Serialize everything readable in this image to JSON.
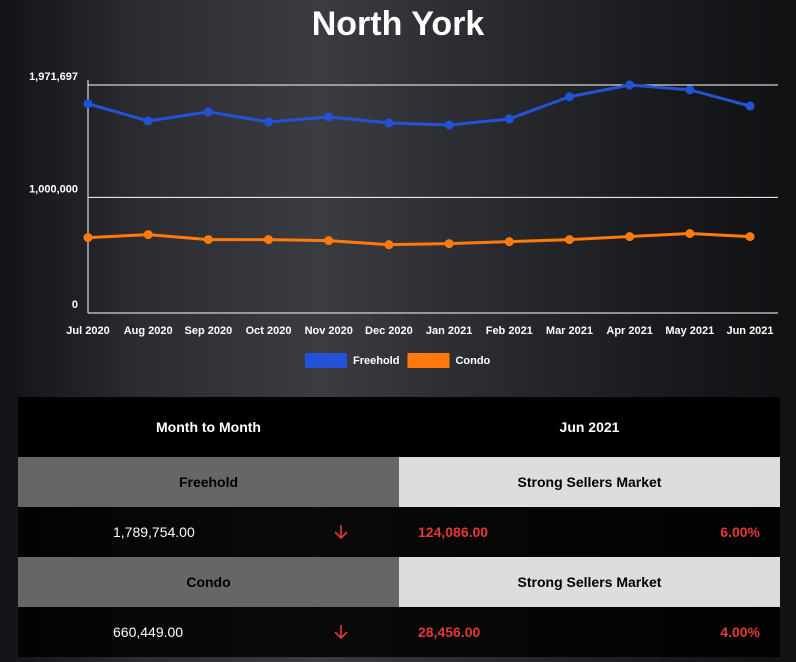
{
  "chart_data": {
    "type": "line",
    "title": "North York",
    "categories": [
      "Jul 2020",
      "Aug 2020",
      "Sep 2020",
      "Oct 2020",
      "Nov 2020",
      "Dec 2020",
      "Jan 2021",
      "Feb 2021",
      "Mar 2021",
      "Apr 2021",
      "May 2021",
      "Jun 2021"
    ],
    "series": [
      {
        "name": "Freehold",
        "color": "#2452d6",
        "values": [
          1809000,
          1661000,
          1739000,
          1652000,
          1696000,
          1643000,
          1626000,
          1678000,
          1870000,
          1971697,
          1930000,
          1789754
        ]
      },
      {
        "name": "Condo",
        "color": "#ff7a0d",
        "values": [
          652000,
          678000,
          635000,
          635000,
          626000,
          591000,
          600000,
          617000,
          635000,
          661000,
          687000,
          660449
        ]
      }
    ],
    "ylim": [
      0,
      1971697
    ],
    "yticks": [
      0,
      {
        "value": 1000000,
        "label": "1,000,000"
      },
      {
        "value": 1971697,
        "label": "1,971,697"
      }
    ],
    "grid": true
  },
  "table": {
    "header": [
      "Month to Month",
      "Jun 2021"
    ],
    "rows": [
      {
        "type": "Freehold",
        "status": "Strong Sellers Market",
        "price": "1,789,754.00",
        "change": "124,086.00",
        "percent": "6.00%"
      },
      {
        "type": "Condo",
        "status": "Strong Sellers Market",
        "price": "660,449.00",
        "change": "28,456.00",
        "percent": "4.00%"
      }
    ]
  }
}
